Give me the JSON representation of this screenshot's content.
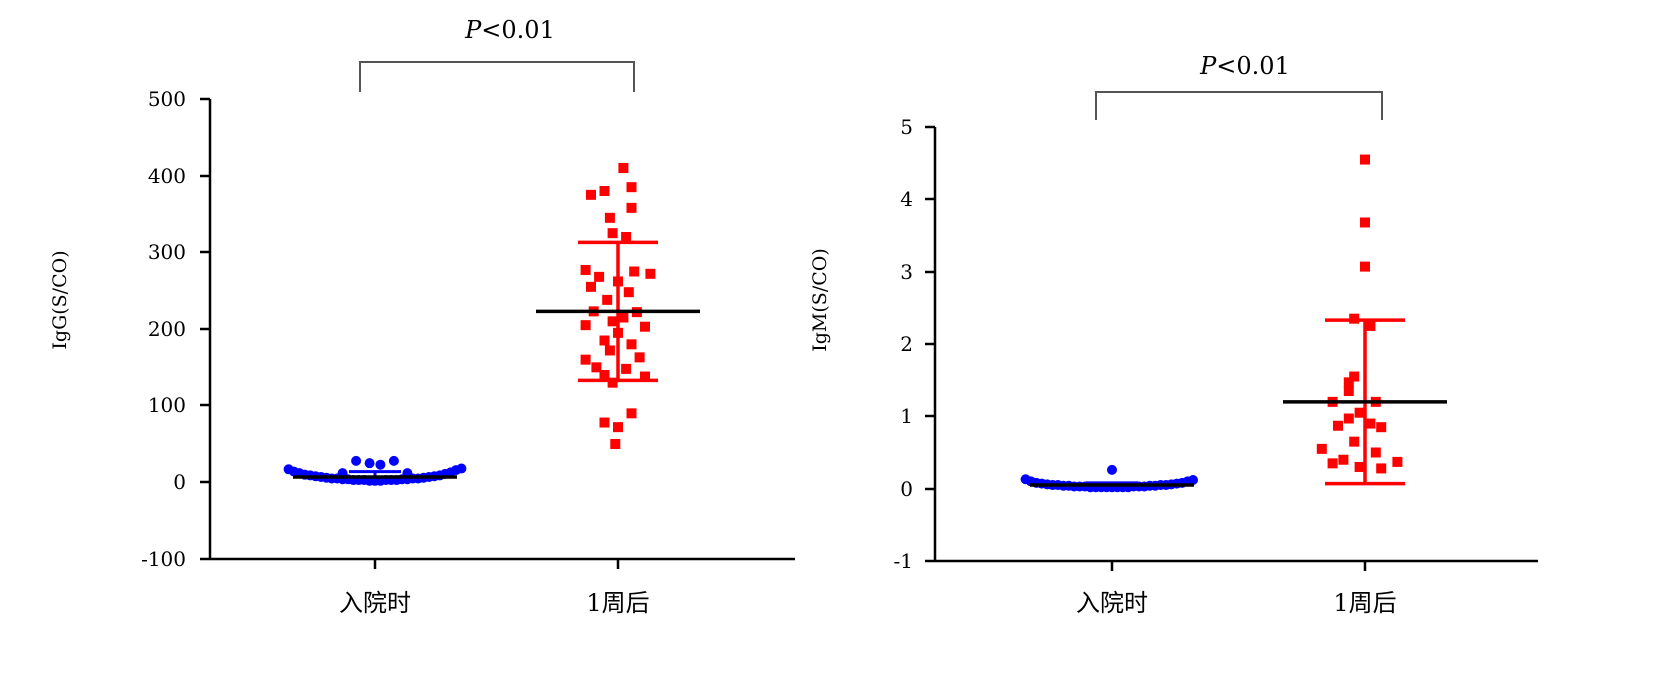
{
  "chart_data": [
    {
      "type": "scatter",
      "ylabel": "IgG(S/CO)",
      "categories": [
        "入院时",
        "1周后"
      ],
      "yticks": [
        "500",
        "400",
        "300",
        "200",
        "100",
        "0",
        "-100"
      ],
      "ylim": [
        -100,
        500
      ],
      "annotation": {
        "prefix": "P",
        "text": "<0.01"
      },
      "groups": [
        {
          "category": "入院时",
          "color": "#0000ff",
          "marker": "circle",
          "mean": 7,
          "sd_upper": 14,
          "sd_lower": 3,
          "points": [
            {
              "dx": -0.32,
              "y": 17
            },
            {
              "dx": -0.3,
              "y": 14
            },
            {
              "dx": -0.28,
              "y": 12
            },
            {
              "dx": -0.26,
              "y": 10
            },
            {
              "dx": -0.24,
              "y": 9
            },
            {
              "dx": -0.22,
              "y": 8
            },
            {
              "dx": -0.2,
              "y": 7
            },
            {
              "dx": -0.18,
              "y": 6
            },
            {
              "dx": -0.16,
              "y": 5
            },
            {
              "dx": -0.14,
              "y": 5
            },
            {
              "dx": -0.12,
              "y": 4
            },
            {
              "dx": -0.1,
              "y": 4
            },
            {
              "dx": -0.08,
              "y": 3
            },
            {
              "dx": -0.06,
              "y": 3
            },
            {
              "dx": -0.04,
              "y": 3
            },
            {
              "dx": -0.02,
              "y": 2
            },
            {
              "dx": 0.0,
              "y": 2
            },
            {
              "dx": 0.02,
              "y": 2
            },
            {
              "dx": 0.04,
              "y": 3
            },
            {
              "dx": 0.06,
              "y": 3
            },
            {
              "dx": 0.08,
              "y": 3
            },
            {
              "dx": 0.1,
              "y": 4
            },
            {
              "dx": 0.12,
              "y": 4
            },
            {
              "dx": 0.14,
              "y": 5
            },
            {
              "dx": 0.16,
              "y": 5
            },
            {
              "dx": 0.18,
              "y": 6
            },
            {
              "dx": 0.2,
              "y": 7
            },
            {
              "dx": 0.22,
              "y": 8
            },
            {
              "dx": 0.24,
              "y": 9
            },
            {
              "dx": 0.26,
              "y": 11
            },
            {
              "dx": 0.28,
              "y": 13
            },
            {
              "dx": 0.3,
              "y": 16
            },
            {
              "dx": 0.32,
              "y": 18
            },
            {
              "dx": -0.07,
              "y": 28
            },
            {
              "dx": -0.02,
              "y": 25
            },
            {
              "dx": 0.02,
              "y": 23
            },
            {
              "dx": 0.07,
              "y": 28
            },
            {
              "dx": -0.12,
              "y": 12
            },
            {
              "dx": 0.12,
              "y": 12
            }
          ]
        },
        {
          "category": "1周后",
          "color": "#ff0000",
          "marker": "square",
          "mean": 223,
          "sd_upper": 313,
          "sd_lower": 133,
          "points": [
            {
              "dx": 0.02,
              "y": 410
            },
            {
              "dx": -0.05,
              "y": 380
            },
            {
              "dx": 0.05,
              "y": 385
            },
            {
              "dx": -0.1,
              "y": 375
            },
            {
              "dx": 0.05,
              "y": 358
            },
            {
              "dx": -0.03,
              "y": 345
            },
            {
              "dx": -0.02,
              "y": 325
            },
            {
              "dx": 0.03,
              "y": 320
            },
            {
              "dx": -0.12,
              "y": 277
            },
            {
              "dx": 0.06,
              "y": 275
            },
            {
              "dx": 0.12,
              "y": 272
            },
            {
              "dx": -0.07,
              "y": 268
            },
            {
              "dx": 0.0,
              "y": 262
            },
            {
              "dx": -0.1,
              "y": 255
            },
            {
              "dx": 0.04,
              "y": 248
            },
            {
              "dx": -0.04,
              "y": 238
            },
            {
              "dx": -0.09,
              "y": 223
            },
            {
              "dx": 0.07,
              "y": 222
            },
            {
              "dx": 0.02,
              "y": 215
            },
            {
              "dx": -0.02,
              "y": 210
            },
            {
              "dx": -0.12,
              "y": 205
            },
            {
              "dx": 0.1,
              "y": 203
            },
            {
              "dx": 0.0,
              "y": 195
            },
            {
              "dx": -0.05,
              "y": 185
            },
            {
              "dx": 0.05,
              "y": 180
            },
            {
              "dx": -0.03,
              "y": 172
            },
            {
              "dx": 0.08,
              "y": 163
            },
            {
              "dx": -0.12,
              "y": 160
            },
            {
              "dx": -0.08,
              "y": 150
            },
            {
              "dx": 0.03,
              "y": 148
            },
            {
              "dx": -0.05,
              "y": 140
            },
            {
              "dx": 0.1,
              "y": 138
            },
            {
              "dx": -0.02,
              "y": 130
            },
            {
              "dx": 0.05,
              "y": 90
            },
            {
              "dx": -0.05,
              "y": 78
            },
            {
              "dx": 0.0,
              "y": 72
            },
            {
              "dx": -0.01,
              "y": 50
            }
          ]
        }
      ]
    },
    {
      "type": "scatter",
      "ylabel": "IgM(S/CO)",
      "categories": [
        "入院时",
        "1周后"
      ],
      "yticks": [
        "5",
        "4",
        "3",
        "2",
        "1",
        "0",
        "-1"
      ],
      "ylim": [
        -1,
        5
      ],
      "annotation": {
        "prefix": "P",
        "text": "<0.01"
      },
      "groups": [
        {
          "category": "入院时",
          "color": "#0000ff",
          "marker": "circle",
          "mean": 0.05,
          "sd_upper": 0.08,
          "sd_lower": 0.03,
          "points": [
            {
              "dx": -0.32,
              "y": 0.13
            },
            {
              "dx": -0.3,
              "y": 0.1
            },
            {
              "dx": -0.28,
              "y": 0.08
            },
            {
              "dx": -0.26,
              "y": 0.07
            },
            {
              "dx": -0.24,
              "y": 0.06
            },
            {
              "dx": -0.22,
              "y": 0.05
            },
            {
              "dx": -0.2,
              "y": 0.05
            },
            {
              "dx": -0.18,
              "y": 0.04
            },
            {
              "dx": -0.16,
              "y": 0.04
            },
            {
              "dx": -0.14,
              "y": 0.03
            },
            {
              "dx": -0.12,
              "y": 0.03
            },
            {
              "dx": -0.1,
              "y": 0.03
            },
            {
              "dx": -0.08,
              "y": 0.02
            },
            {
              "dx": -0.06,
              "y": 0.02
            },
            {
              "dx": -0.04,
              "y": 0.02
            },
            {
              "dx": -0.02,
              "y": 0.02
            },
            {
              "dx": 0.0,
              "y": 0.02
            },
            {
              "dx": 0.02,
              "y": 0.02
            },
            {
              "dx": 0.04,
              "y": 0.02
            },
            {
              "dx": 0.06,
              "y": 0.02
            },
            {
              "dx": 0.08,
              "y": 0.03
            },
            {
              "dx": 0.1,
              "y": 0.03
            },
            {
              "dx": 0.12,
              "y": 0.03
            },
            {
              "dx": 0.14,
              "y": 0.04
            },
            {
              "dx": 0.16,
              "y": 0.04
            },
            {
              "dx": 0.18,
              "y": 0.05
            },
            {
              "dx": 0.2,
              "y": 0.05
            },
            {
              "dx": 0.22,
              "y": 0.06
            },
            {
              "dx": 0.24,
              "y": 0.07
            },
            {
              "dx": 0.26,
              "y": 0.08
            },
            {
              "dx": 0.28,
              "y": 0.1
            },
            {
              "dx": 0.3,
              "y": 0.12
            },
            {
              "dx": 0.0,
              "y": 0.26
            }
          ]
        },
        {
          "category": "1周后",
          "color": "#ff0000",
          "marker": "square",
          "mean": 1.2,
          "sd_upper": 2.33,
          "sd_lower": 0.07,
          "points": [
            {
              "dx": 0.0,
              "y": 4.55
            },
            {
              "dx": 0.0,
              "y": 3.68
            },
            {
              "dx": 0.0,
              "y": 3.07
            },
            {
              "dx": -0.04,
              "y": 2.35
            },
            {
              "dx": 0.02,
              "y": 2.25
            },
            {
              "dx": -0.04,
              "y": 1.55
            },
            {
              "dx": -0.06,
              "y": 1.47
            },
            {
              "dx": -0.06,
              "y": 1.35
            },
            {
              "dx": -0.12,
              "y": 1.2
            },
            {
              "dx": 0.04,
              "y": 1.2
            },
            {
              "dx": -0.02,
              "y": 1.05
            },
            {
              "dx": -0.06,
              "y": 0.97
            },
            {
              "dx": 0.02,
              "y": 0.9
            },
            {
              "dx": -0.1,
              "y": 0.87
            },
            {
              "dx": 0.06,
              "y": 0.85
            },
            {
              "dx": -0.04,
              "y": 0.65
            },
            {
              "dx": -0.16,
              "y": 0.55
            },
            {
              "dx": 0.04,
              "y": 0.5
            },
            {
              "dx": -0.08,
              "y": 0.4
            },
            {
              "dx": -0.12,
              "y": 0.35
            },
            {
              "dx": 0.12,
              "y": 0.37
            },
            {
              "dx": -0.02,
              "y": 0.3
            },
            {
              "dx": 0.06,
              "y": 0.28
            }
          ]
        }
      ]
    }
  ]
}
